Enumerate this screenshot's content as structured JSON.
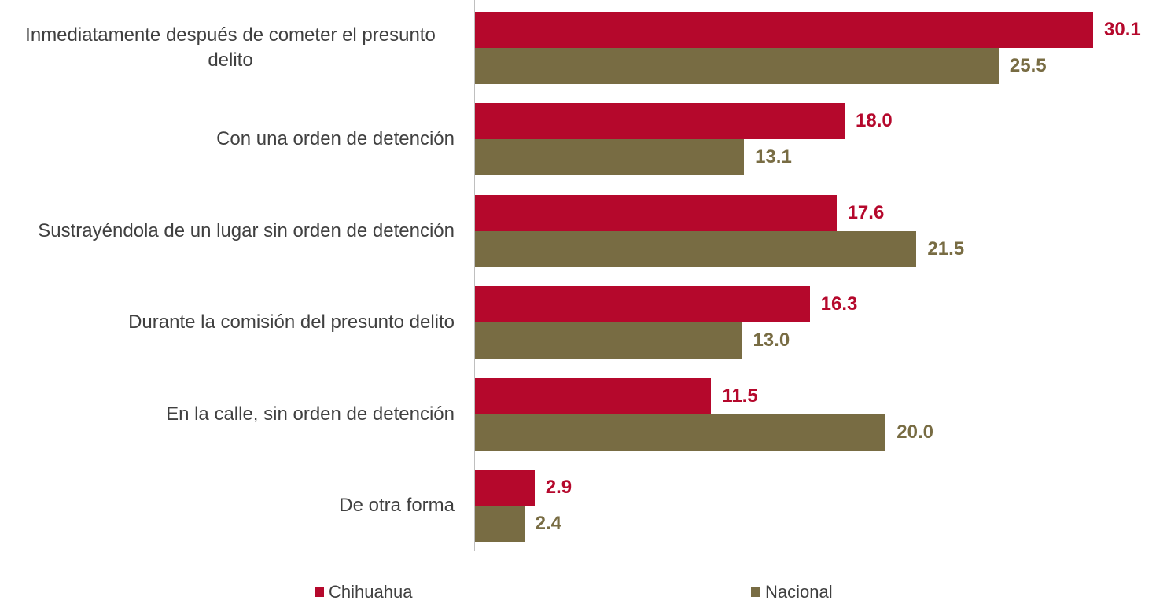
{
  "chart_data": {
    "type": "bar",
    "orientation": "horizontal",
    "categories": [
      "Inmediatamente después de cometer el presunto delito",
      "Con una orden de detención",
      "Sustrayéndola de un lugar sin orden de detención",
      "Durante la comisión del presunto delito",
      "En la calle, sin orden de detención",
      "De otra forma"
    ],
    "series": [
      {
        "name": "Chihuahua",
        "color": "#b5082c",
        "values": [
          30.1,
          18.0,
          17.6,
          16.3,
          11.5,
          2.9
        ],
        "value_labels": [
          "30.1",
          "18.0",
          "17.6",
          "16.3",
          "11.5",
          "2.9"
        ]
      },
      {
        "name": "Nacional",
        "color": "#786c43",
        "values": [
          25.5,
          13.1,
          21.5,
          13.0,
          20.0,
          2.4
        ],
        "value_labels": [
          "25.5",
          "13.1",
          "21.5",
          "13.0",
          "20.0",
          "2.4"
        ]
      }
    ],
    "legend": "bottom"
  }
}
